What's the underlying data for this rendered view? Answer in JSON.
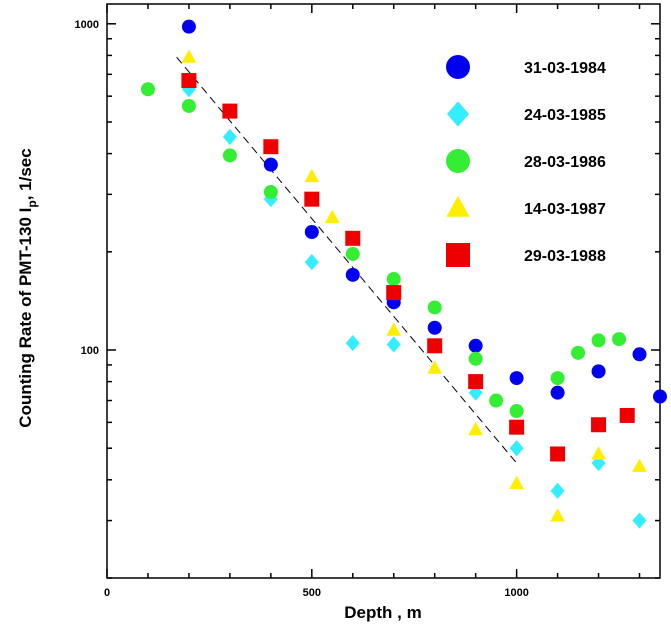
{
  "chart_data": {
    "type": "scatter",
    "title": "",
    "xlabel": "Depth , m",
    "ylabel_parts": [
      "Counting Rate of PMT-130 I",
      "p",
      ", 1/sec"
    ],
    "xlim": [
      0,
      1350
    ],
    "ylim": [
      20,
      1150
    ],
    "y_scale": "log",
    "x_ticks": [
      0,
      500,
      1000
    ],
    "x_tick_labels": [
      "0",
      "500",
      "1000"
    ],
    "y_ticks": [
      100,
      1000
    ],
    "y_tick_labels": [
      "100",
      "1000"
    ],
    "grid": false,
    "legend_position": "top-right",
    "series": [
      {
        "name": "31-03-1984",
        "marker": "circle",
        "color": "#0000ee",
        "x": [
          200,
          400,
          500,
          600,
          700,
          800,
          900,
          1000,
          1100,
          1200,
          1300,
          1350
        ],
        "y": [
          980,
          370,
          230,
          170,
          140,
          117,
          103,
          82,
          74,
          86,
          97,
          72
        ]
      },
      {
        "name": "24-03-1985",
        "marker": "diamond",
        "color": "#33eeff",
        "x": [
          200,
          300,
          400,
          500,
          600,
          700,
          900,
          1000,
          1100,
          1200,
          1300
        ],
        "y": [
          630,
          450,
          290,
          186,
          105,
          104,
          74,
          50,
          37,
          45,
          30
        ]
      },
      {
        "name": "28-03-1986",
        "marker": "circle",
        "color": "#33ee33",
        "x": [
          100,
          200,
          300,
          400,
          600,
          700,
          800,
          900,
          950,
          1000,
          1100,
          1150,
          1200,
          1250
        ],
        "y": [
          630,
          560,
          395,
          305,
          197,
          165,
          135,
          94,
          70,
          65,
          82,
          98,
          107,
          108
        ]
      },
      {
        "name": "14-03-1987",
        "marker": "triangle",
        "color": "#ffee00",
        "x": [
          200,
          500,
          550,
          700,
          800,
          900,
          1000,
          1100,
          1200,
          1300
        ],
        "y": [
          790,
          340,
          255,
          115,
          88,
          57,
          39,
          31,
          48,
          44
        ]
      },
      {
        "name": "29-03-1988",
        "marker": "square",
        "color": "#ee0000",
        "x": [
          200,
          300,
          400,
          500,
          600,
          700,
          800,
          900,
          1000,
          1100,
          1200,
          1270
        ],
        "y": [
          670,
          540,
          420,
          290,
          220,
          150,
          103,
          80,
          58,
          48,
          59,
          63
        ]
      }
    ],
    "trend_line": {
      "style": "dashed",
      "x": [
        170,
        1000
      ],
      "y": [
        790,
        45
      ]
    }
  }
}
